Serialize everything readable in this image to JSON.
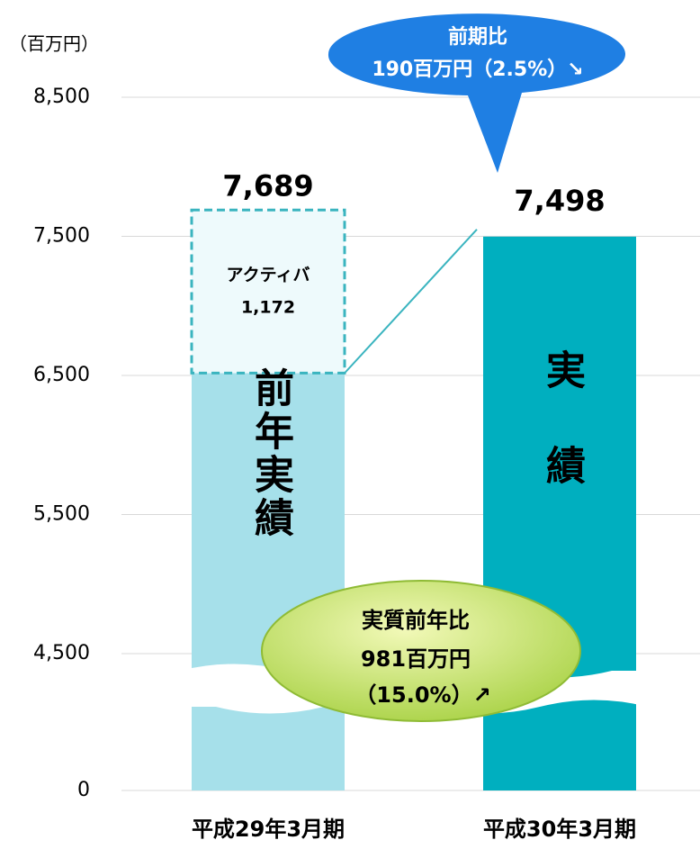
{
  "chart_data": {
    "type": "stacked_bar",
    "unit_label": "（百万円）",
    "categories": [
      "平成29年3月期",
      "平成30年3月期"
    ],
    "series": [
      {
        "name": "前年実績",
        "color": "#a6e0ea",
        "values": [
          6517,
          null
        ]
      },
      {
        "name": "実績",
        "color": "#00afbf",
        "values": [
          null,
          7498
        ],
        "value_labels": [
          null,
          "7,498"
        ]
      },
      {
        "name": "アクティバ",
        "color": "#eefafc",
        "values": [
          1172,
          null
        ],
        "value_labels": [
          "1,172",
          null
        ]
      }
    ],
    "totals": [
      7689,
      null
    ],
    "total_labels": [
      "7,689",
      null
    ],
    "ylim": [
      0,
      8500
    ],
    "axis_break": [
      0,
      4500
    ],
    "yticks": [
      0,
      {
        "value": 4500,
        "label": "4,500"
      },
      {
        "value": 5500,
        "label": "5,500"
      },
      {
        "value": 6500,
        "label": "6,500"
      },
      {
        "value": 7500,
        "label": "7,500"
      },
      {
        "value": 8500,
        "label": "8,500"
      }
    ],
    "grid": true,
    "annotations": [
      {
        "lines": [
          "前期比",
          "190百万円（2.5%）↘"
        ]
      },
      {
        "lines": [
          "実質前年比",
          "981百万円",
          "（15.0%）↗"
        ]
      }
    ]
  }
}
